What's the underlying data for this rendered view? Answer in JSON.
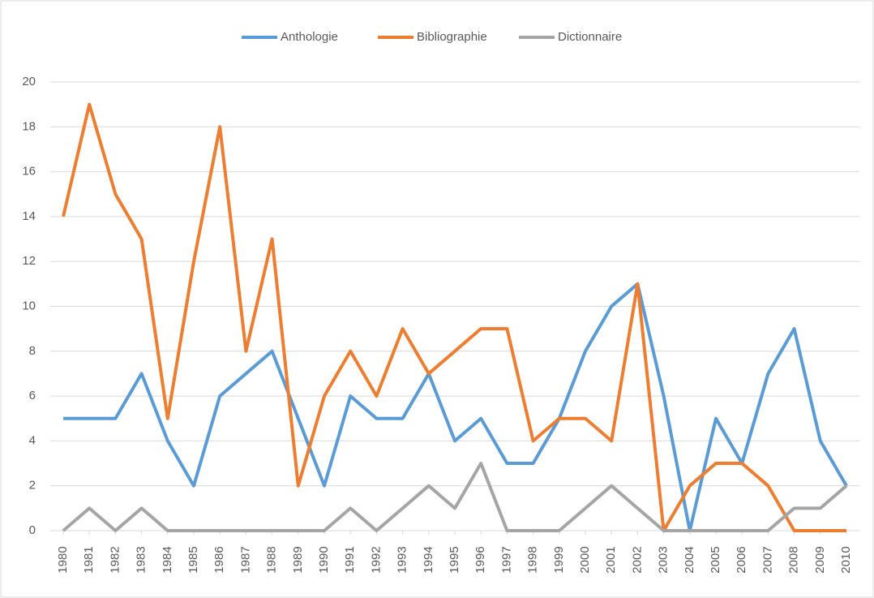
{
  "chart_data": {
    "type": "line",
    "categories": [
      "1980",
      "1981",
      "1982",
      "1983",
      "1984",
      "1985",
      "1986",
      "1987",
      "1988",
      "1989",
      "1990",
      "1991",
      "1992",
      "1993",
      "1994",
      "1995",
      "1996",
      "1997",
      "1998",
      "1999",
      "2000",
      "2001",
      "2002",
      "2003",
      "2004",
      "2005",
      "2006",
      "2007",
      "2008",
      "2009",
      "2010"
    ],
    "series": [
      {
        "name": "Anthologie",
        "color": "#5b9bd5",
        "values": [
          5,
          5,
          5,
          7,
          4,
          2,
          6,
          7,
          8,
          5,
          2,
          6,
          5,
          5,
          7,
          4,
          5,
          3,
          3,
          5,
          8,
          10,
          11,
          6,
          0,
          5,
          3,
          7,
          9,
          4,
          2
        ]
      },
      {
        "name": "Bibliographie",
        "color": "#ed7d31",
        "values": [
          14,
          19,
          15,
          13,
          5,
          12,
          18,
          8,
          13,
          2,
          6,
          8,
          6,
          9,
          7,
          8,
          9,
          9,
          4,
          5,
          5,
          4,
          11,
          0,
          2,
          3,
          3,
          2,
          0,
          0,
          0
        ]
      },
      {
        "name": "Dictionnaire",
        "color": "#a5a5a5",
        "values": [
          0,
          1,
          0,
          1,
          0,
          0,
          0,
          0,
          0,
          0,
          0,
          1,
          0,
          1,
          2,
          1,
          3,
          0,
          0,
          0,
          1,
          2,
          1,
          0,
          0,
          0,
          0,
          0,
          1,
          1,
          2
        ]
      }
    ],
    "ylim": [
      0,
      20
    ],
    "yticks": [
      0,
      2,
      4,
      6,
      8,
      10,
      12,
      14,
      16,
      18,
      20
    ],
    "grid": true,
    "legend": "top"
  }
}
